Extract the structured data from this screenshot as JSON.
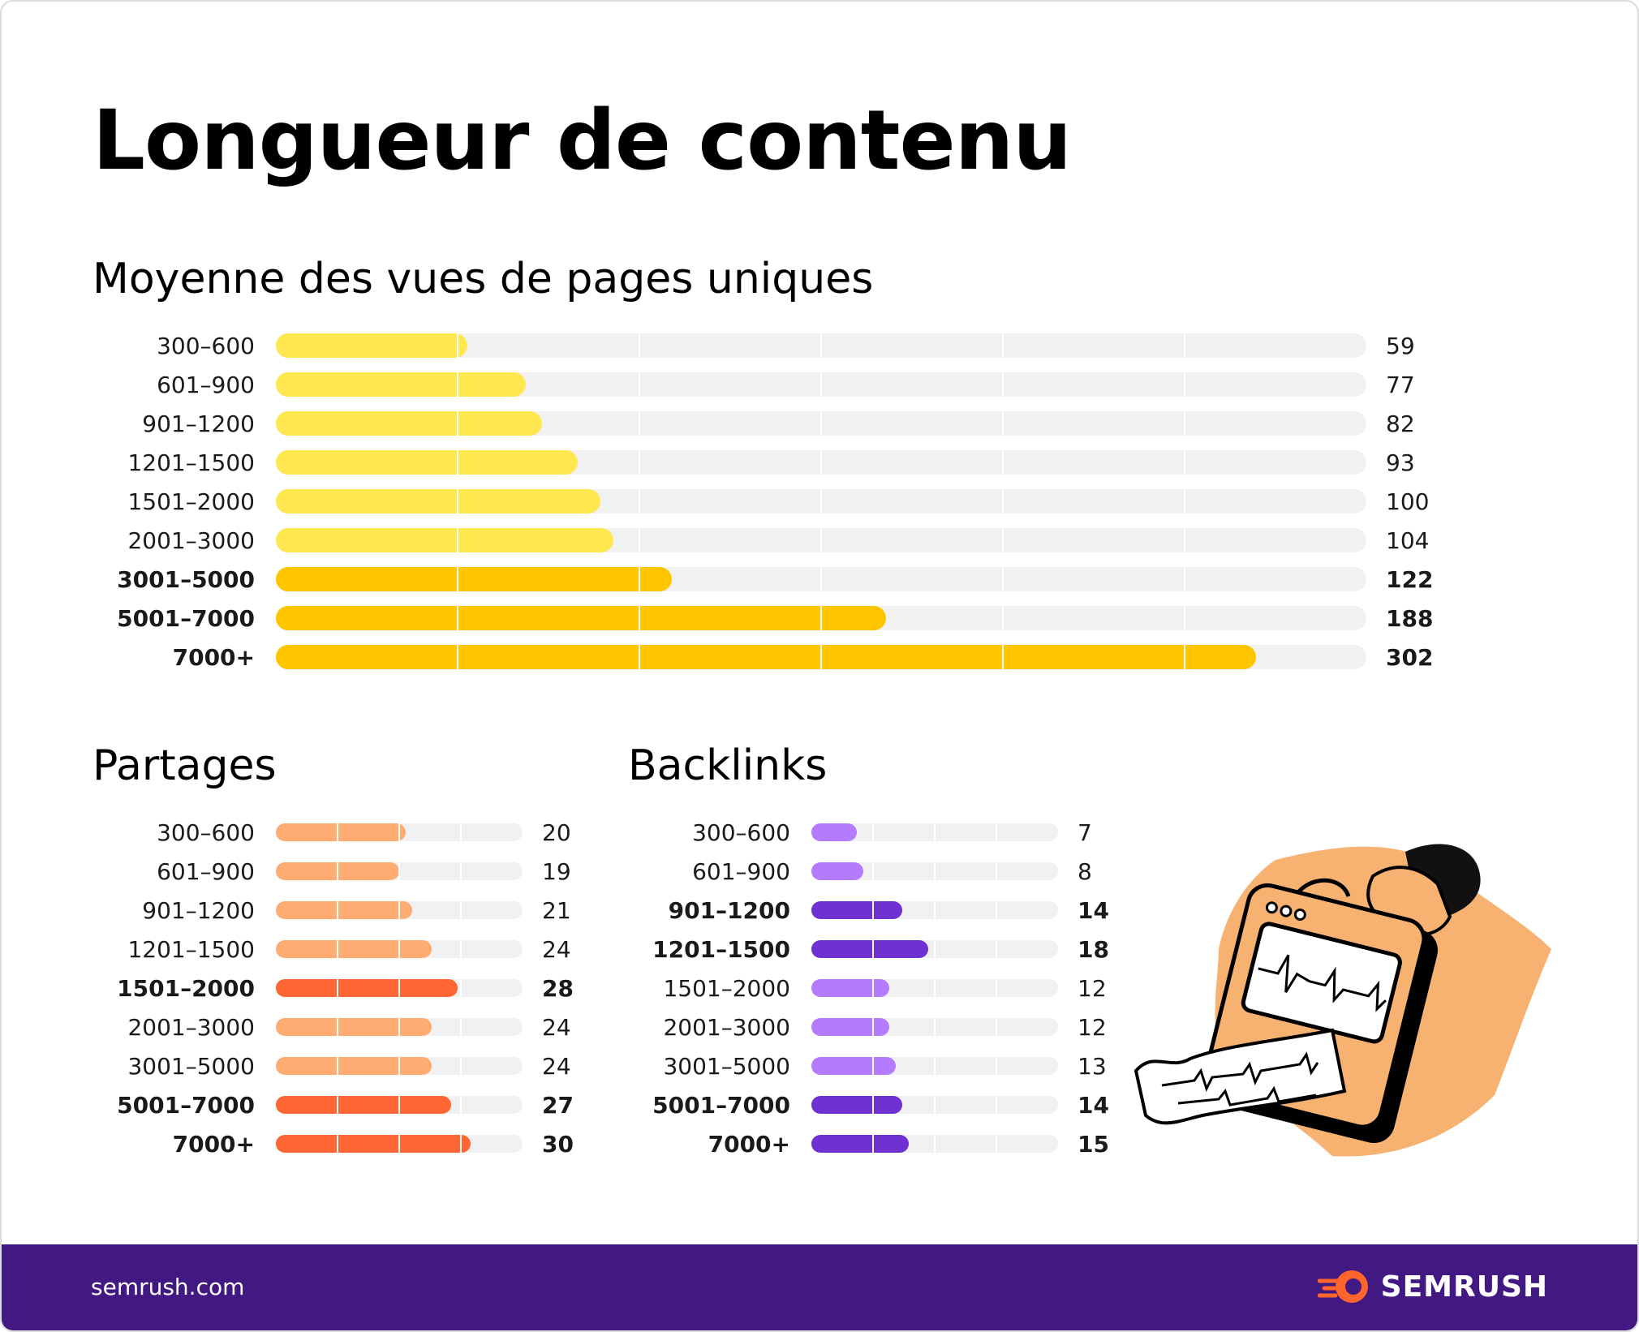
{
  "title": "Longueur de contenu",
  "footer": {
    "site": "semrush.com",
    "brand": "SEMRUSH"
  },
  "colors": {
    "track": "#f1f1f1",
    "views_light": "#ffe84f",
    "views_bold": "#ffc600",
    "shares_light": "#ffac72",
    "shares_bold": "#ff6633",
    "backlinks_light": "#b57bff",
    "backlinks_bold": "#6f32d0",
    "footer_bg": "#421983",
    "brand_orange": "#ff642d"
  },
  "chart_data": [
    {
      "id": "views",
      "type": "bar",
      "orientation": "horizontal",
      "title": "Moyenne des vues de pages uniques",
      "categories": [
        "300–600",
        "601–900",
        "901–1200",
        "1201–1500",
        "1501–2000",
        "2001–3000",
        "3001–5000",
        "5001–7000",
        "7000+"
      ],
      "values": [
        59,
        77,
        82,
        93,
        100,
        104,
        122,
        188,
        302
      ],
      "highlight": [
        false,
        false,
        false,
        false,
        false,
        false,
        true,
        true,
        true
      ],
      "value_labels": [
        "59",
        "77",
        "82",
        "93",
        "100",
        "104",
        "122",
        "188",
        "302"
      ],
      "xlim": [
        0,
        336
      ]
    },
    {
      "id": "shares",
      "type": "bar",
      "orientation": "horizontal",
      "title": "Partages",
      "categories": [
        "300–600",
        "601–900",
        "901–1200",
        "1201–1500",
        "1501–2000",
        "2001–3000",
        "3001–5000",
        "5001–7000",
        "7000+"
      ],
      "values": [
        20,
        19,
        21,
        24,
        28,
        24,
        24,
        27,
        30
      ],
      "highlight": [
        false,
        false,
        false,
        false,
        true,
        false,
        false,
        true,
        true
      ],
      "value_labels": [
        "20",
        "19",
        "21",
        "24",
        "28",
        "24",
        "24",
        "27",
        "30"
      ],
      "xlim": [
        0,
        38
      ]
    },
    {
      "id": "backlinks",
      "type": "bar",
      "orientation": "horizontal",
      "title": "Backlinks",
      "categories": [
        "300–600",
        "601–900",
        "901–1200",
        "1201–1500",
        "1501–2000",
        "2001–3000",
        "3001–5000",
        "5001–7000",
        "7000+"
      ],
      "values": [
        7,
        8,
        14,
        18,
        12,
        12,
        13,
        14,
        15
      ],
      "highlight": [
        false,
        false,
        true,
        true,
        false,
        false,
        false,
        true,
        true
      ],
      "value_labels": [
        "7",
        "8",
        "14",
        "18",
        "12",
        "12",
        "13",
        "14",
        "15"
      ],
      "xlim": [
        0,
        38
      ]
    }
  ]
}
